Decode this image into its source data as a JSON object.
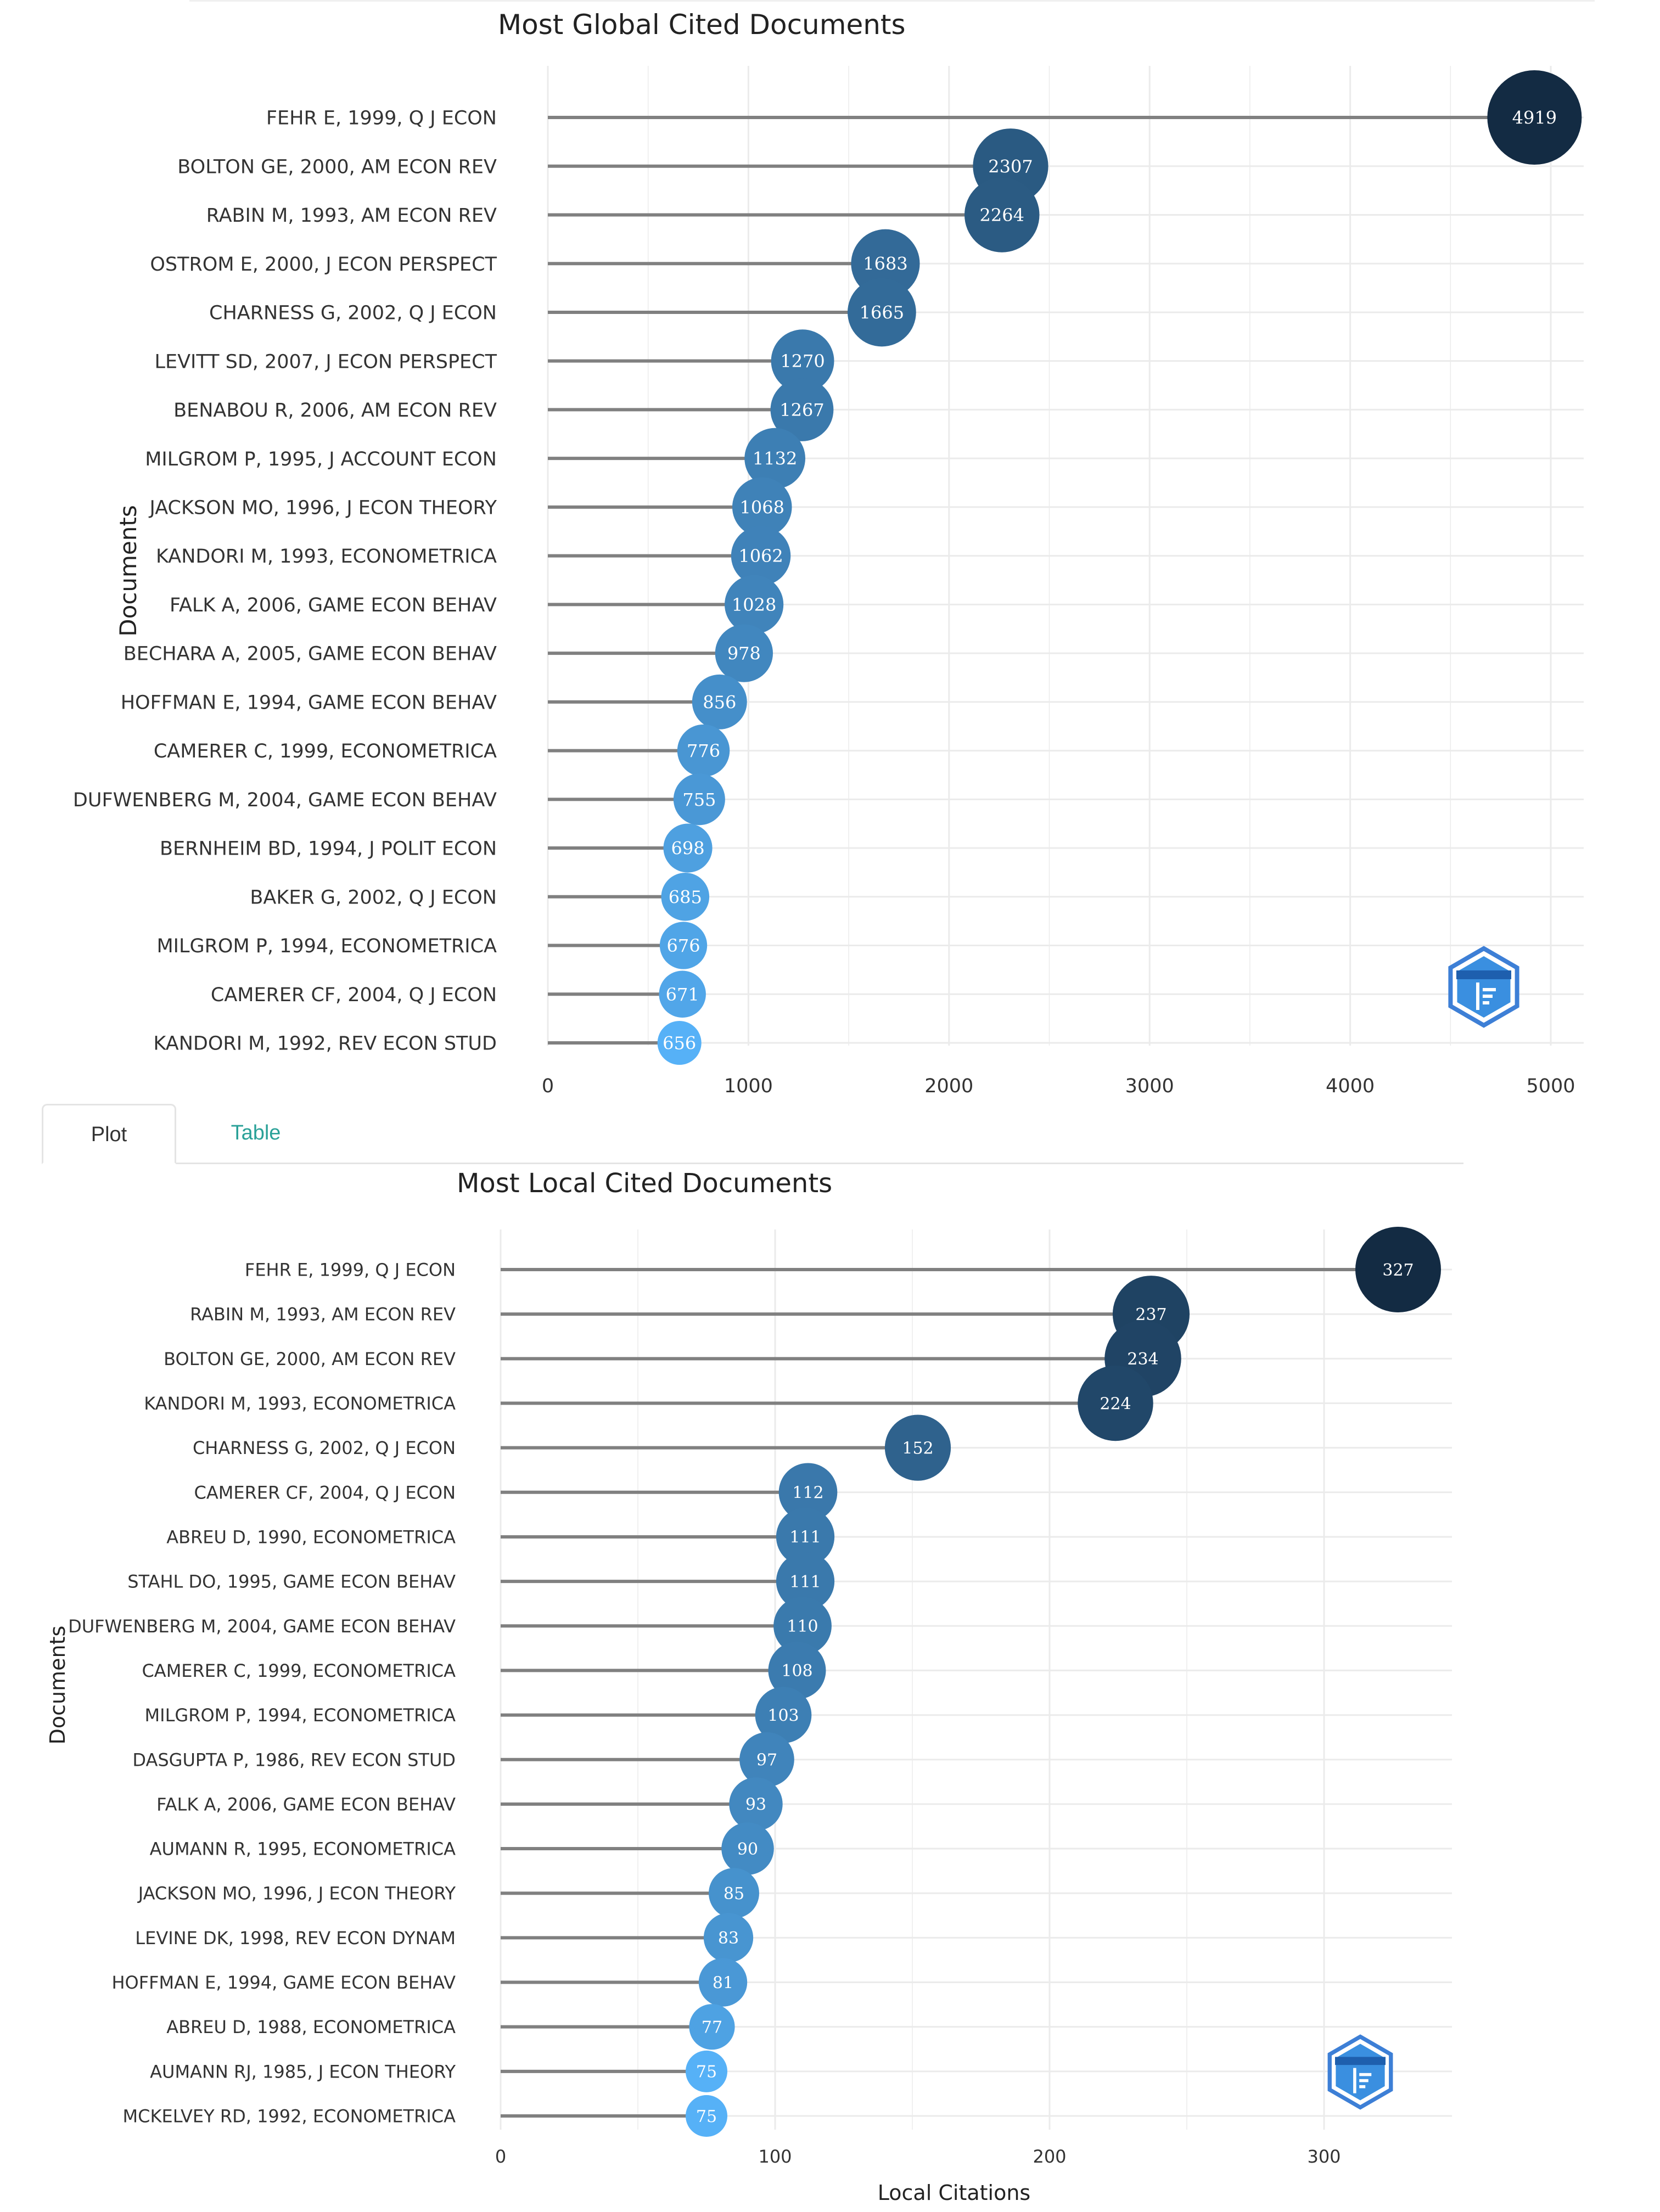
{
  "tabs": [
    {
      "label": "Plot",
      "active": true
    },
    {
      "label": "Table",
      "active": false
    }
  ],
  "colors": {
    "dark": "#132b43",
    "light": "#56b1f7",
    "stem": "#808080",
    "grid": "#ebebeb"
  },
  "chart_data": [
    {
      "type": "scatter",
      "title": "Most Global Cited Documents",
      "xlabel": "",
      "ylabel": "Documents",
      "xlim": [
        0,
        5000
      ],
      "xticks": [
        0,
        1000,
        2000,
        3000,
        4000,
        5000
      ],
      "grid": true,
      "legend": "none",
      "logo": "bibliometrix-logo",
      "categories": [
        "FEHR E, 1999, Q J ECON",
        "BOLTON GE, 2000, AM ECON REV",
        "RABIN M, 1993, AM ECON REV",
        "OSTROM E, 2000, J ECON PERSPECT",
        "CHARNESS G, 2002, Q J ECON",
        "LEVITT SD, 2007, J ECON PERSPECT",
        "BENABOU R, 2006, AM ECON REV",
        "MILGROM P, 1995, J ACCOUNT ECON",
        "JACKSON MO, 1996, J ECON THEORY",
        "KANDORI M, 1993, ECONOMETRICA",
        "FALK A, 2006, GAME ECON BEHAV",
        "BECHARA A, 2005, GAME ECON BEHAV",
        "HOFFMAN E, 1994, GAME ECON BEHAV",
        "CAMERER C, 1999, ECONOMETRICA",
        "DUFWENBERG M, 2004, GAME ECON BEHAV",
        "BERNHEIM BD, 1994, J POLIT ECON",
        "BAKER G, 2002, Q J ECON",
        "MILGROM P, 1994, ECONOMETRICA",
        "CAMERER CF, 2004, Q J ECON",
        "KANDORI M, 1992, REV ECON STUD"
      ],
      "values": [
        4919,
        2307,
        2264,
        1683,
        1665,
        1270,
        1267,
        1132,
        1068,
        1062,
        1028,
        978,
        856,
        776,
        755,
        698,
        685,
        676,
        671,
        656
      ]
    },
    {
      "type": "scatter",
      "title": "Most Local Cited Documents",
      "xlabel": "Local Citations",
      "ylabel": "Documents",
      "xlim": [
        0,
        345
      ],
      "xticks": [
        0,
        100,
        200,
        300
      ],
      "grid": true,
      "legend": "none",
      "logo": "bibliometrix-logo",
      "categories": [
        "FEHR E, 1999, Q J ECON",
        "RABIN M, 1993, AM ECON REV",
        "BOLTON GE, 2000, AM ECON REV",
        "KANDORI M, 1993, ECONOMETRICA",
        "CHARNESS G, 2002, Q J ECON",
        "CAMERER CF, 2004, Q J ECON",
        "ABREU D, 1990, ECONOMETRICA",
        "STAHL DO, 1995, GAME ECON BEHAV",
        "DUFWENBERG M, 2004, GAME ECON BEHAV",
        "CAMERER C, 1999, ECONOMETRICA",
        "MILGROM P, 1994, ECONOMETRICA",
        "DASGUPTA P, 1986, REV ECON STUD",
        "FALK A, 2006, GAME ECON BEHAV",
        "AUMANN R, 1995, ECONOMETRICA",
        "JACKSON MO, 1996, J ECON THEORY",
        "LEVINE DK, 1998, REV ECON DYNAM",
        "HOFFMAN E, 1994, GAME ECON BEHAV",
        "ABREU D, 1988, ECONOMETRICA",
        "AUMANN RJ, 1985, J ECON THEORY",
        "MCKELVEY RD, 1992, ECONOMETRICA"
      ],
      "values": [
        327,
        237,
        234,
        224,
        152,
        112,
        111,
        111,
        110,
        108,
        103,
        97,
        93,
        90,
        85,
        83,
        81,
        77,
        75,
        75
      ]
    }
  ]
}
